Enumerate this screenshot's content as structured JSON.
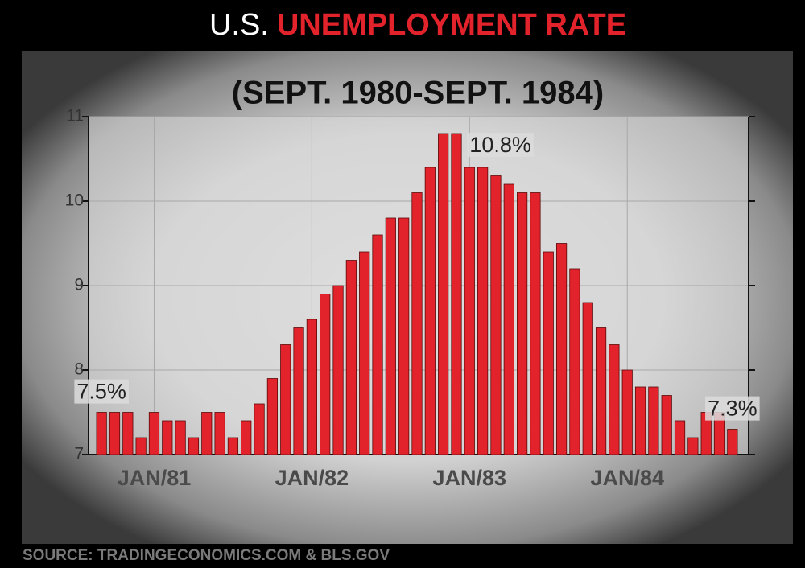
{
  "chart_data": {
    "type": "bar",
    "title_lead": "U.S.",
    "title": "UNEMPLOYMENT RATE",
    "subtitle": "(SEPT. 1980-SEPT. 1984)",
    "source": "SOURCE: TRADINGECONOMICS.COM & BLS.GOV",
    "categories": [
      null,
      null,
      null,
      null,
      "JAN/81",
      null,
      null,
      null,
      null,
      null,
      null,
      null,
      null,
      null,
      null,
      null,
      "JAN/82",
      null,
      null,
      null,
      null,
      null,
      null,
      null,
      null,
      null,
      null,
      null,
      "JAN/83",
      null,
      null,
      null,
      null,
      null,
      null,
      null,
      null,
      null,
      null,
      null,
      "JAN/84",
      null,
      null,
      null,
      null,
      null,
      null,
      null,
      null
    ],
    "values": [
      7.5,
      7.5,
      7.5,
      7.2,
      7.5,
      7.4,
      7.4,
      7.2,
      7.5,
      7.5,
      7.2,
      7.4,
      7.6,
      7.9,
      8.3,
      8.5,
      8.6,
      8.9,
      9.0,
      9.3,
      9.4,
      9.6,
      9.8,
      9.8,
      10.1,
      10.4,
      10.8,
      10.8,
      10.4,
      10.4,
      10.3,
      10.2,
      10.1,
      10.1,
      9.4,
      9.5,
      9.2,
      8.8,
      8.5,
      8.3,
      8.0,
      7.8,
      7.8,
      7.7,
      7.4,
      7.2,
      7.5,
      7.5,
      7.3
    ],
    "value_labels": [
      "7.5%",
      null,
      null,
      null,
      null,
      null,
      null,
      null,
      null,
      null,
      null,
      null,
      null,
      null,
      null,
      null,
      null,
      null,
      null,
      null,
      null,
      null,
      null,
      null,
      null,
      null,
      null,
      "10.8%",
      null,
      null,
      null,
      null,
      null,
      null,
      null,
      null,
      null,
      null,
      null,
      null,
      null,
      null,
      null,
      null,
      null,
      null,
      null,
      null,
      "7.3%"
    ],
    "color": "#e3232b",
    "ylim": [
      7,
      11
    ],
    "yticks": [
      7,
      8,
      9,
      10,
      11
    ],
    "grid": true
  }
}
